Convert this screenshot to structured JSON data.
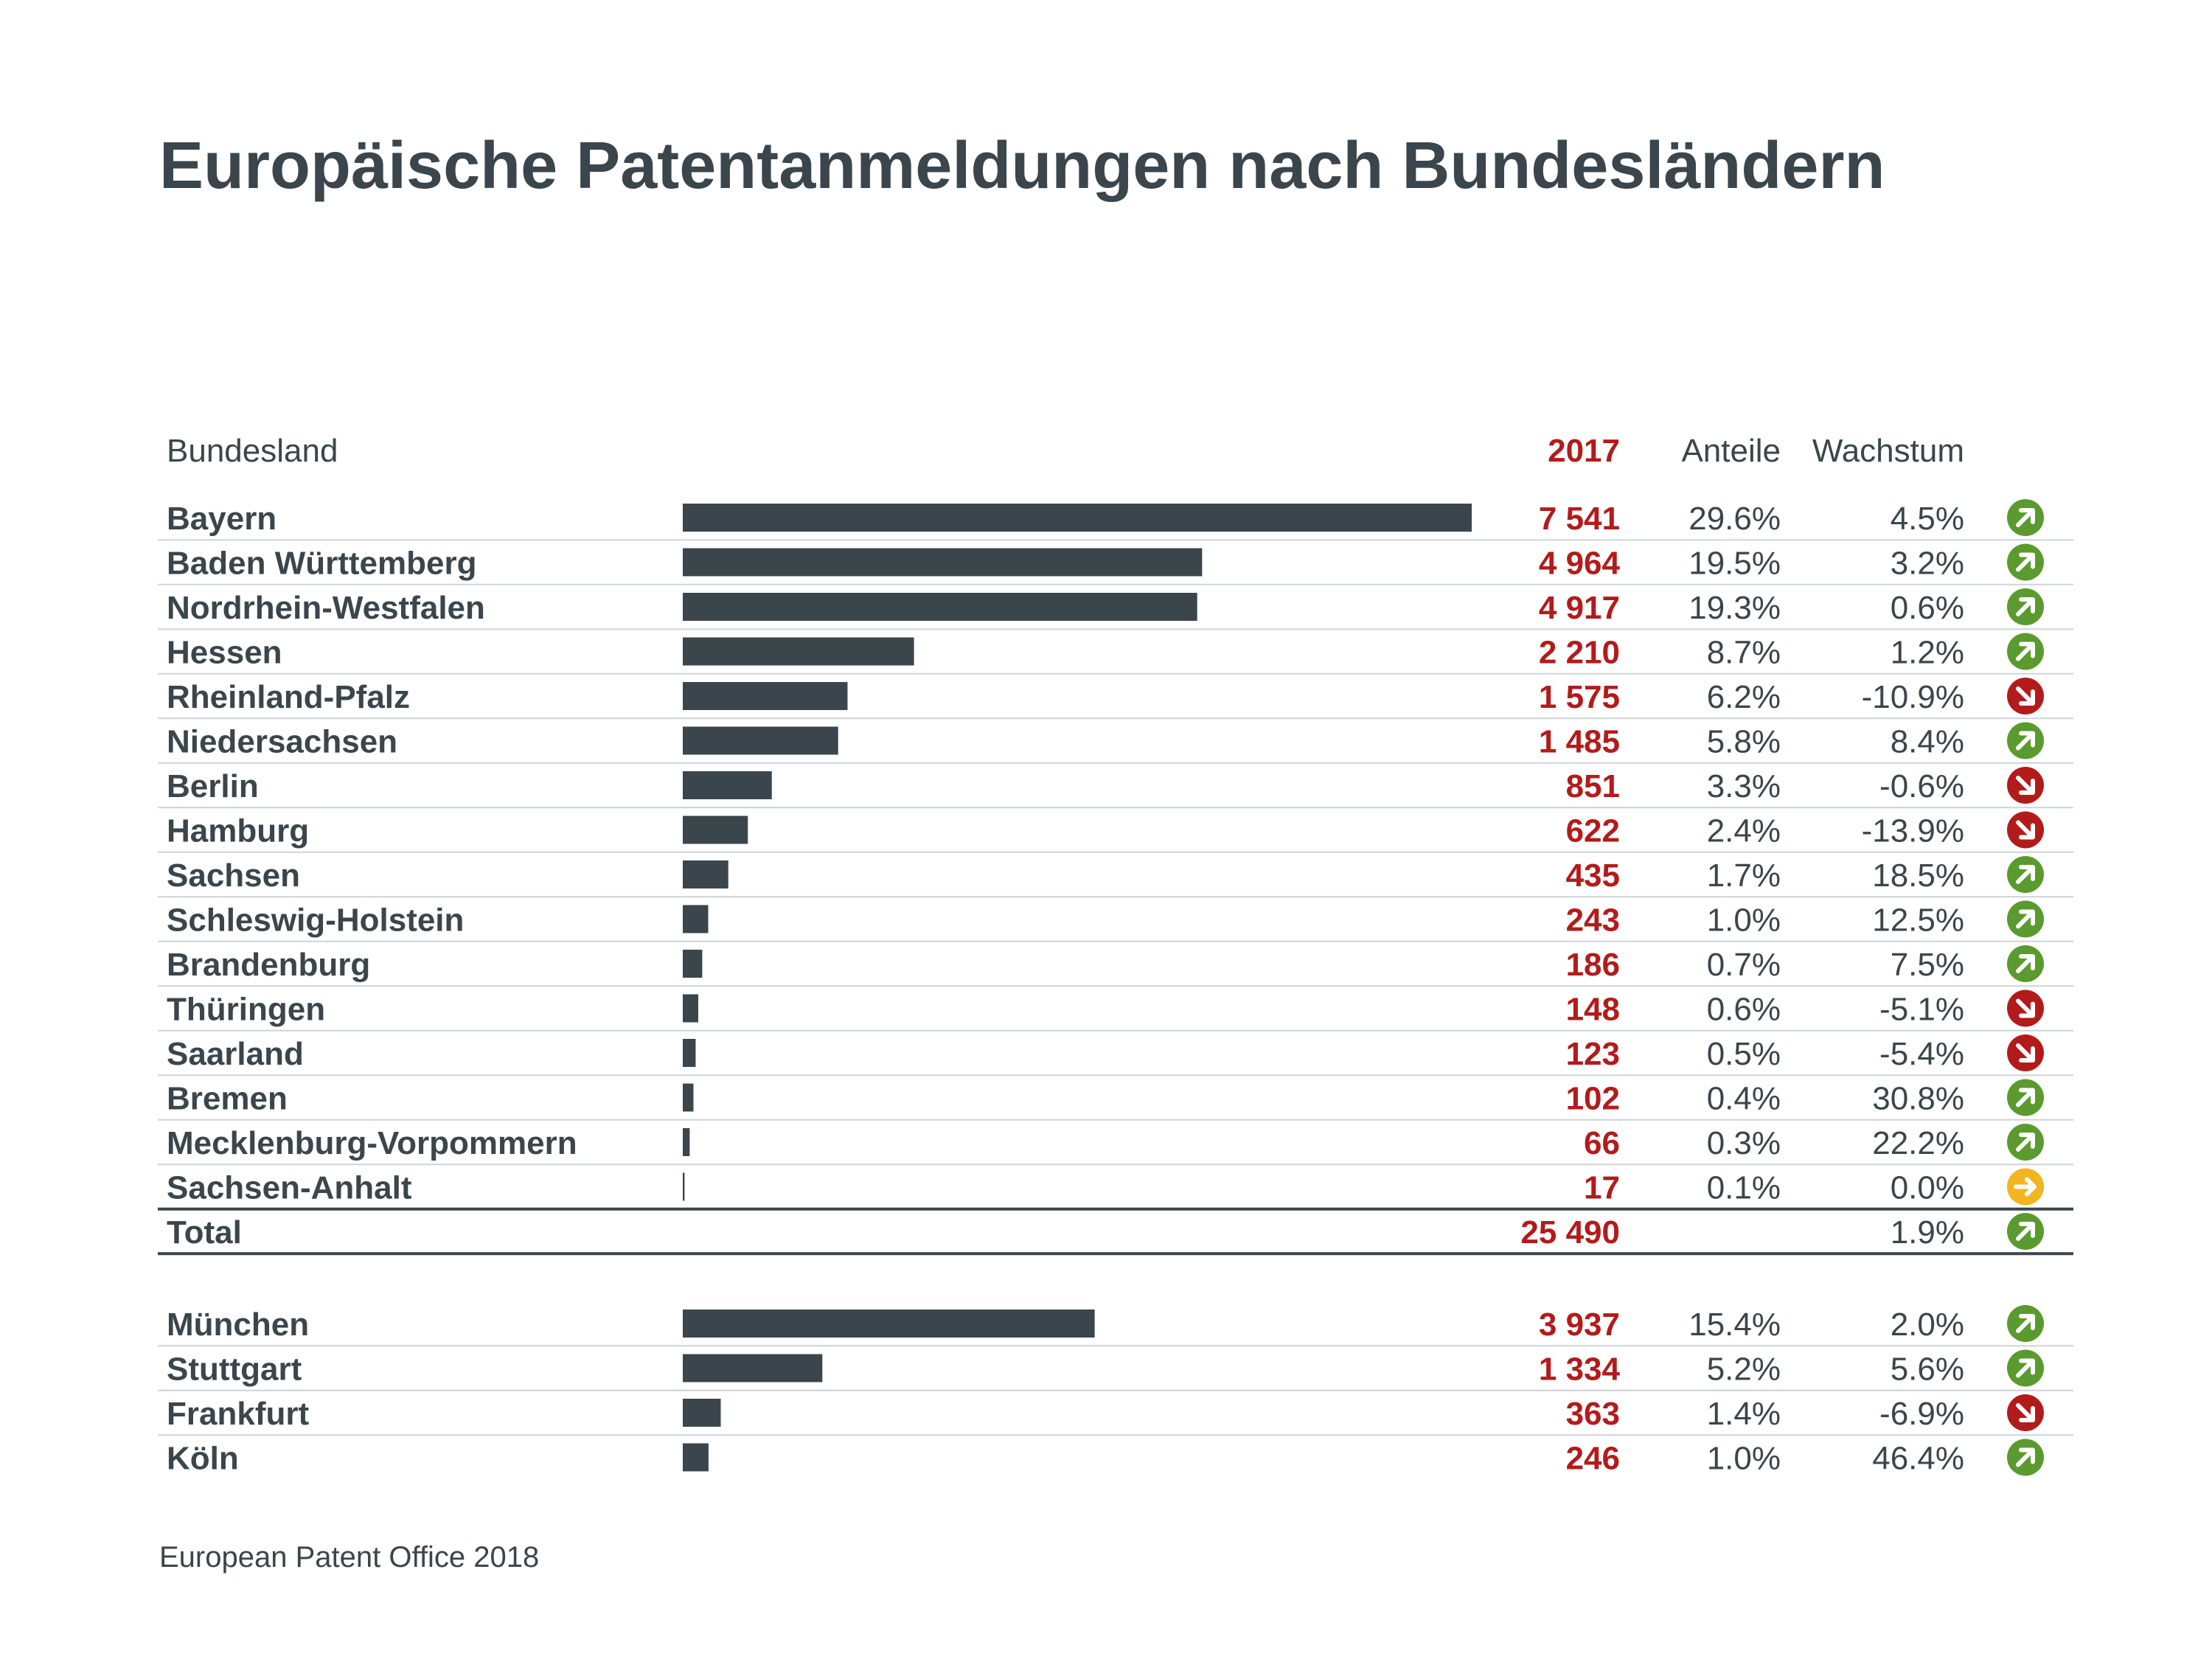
{
  "title": "Europäische Patentanmeldungen nach Bundesländern",
  "source": "European Patent Office 2018",
  "colors": {
    "text": "#3b454c",
    "bar": "#3b454c",
    "value": "#b31b1b",
    "up": "#5a9a2e",
    "down": "#b31b1b",
    "flat": "#f2b520",
    "rule": "#cfd3d6"
  },
  "chart_data": {
    "type": "bar",
    "orientation": "horizontal",
    "headers": {
      "category": "Bundesland",
      "value": "2017",
      "share": "Anteile",
      "growth": "Wachstum"
    },
    "xlim": [
      0,
      7541
    ],
    "states": [
      {
        "name": "Bayern",
        "value": 7541,
        "label": "7 541",
        "share": "29.6%",
        "growth": "4.5%",
        "trend": "up"
      },
      {
        "name": "Baden Württemberg",
        "value": 4964,
        "label": "4 964",
        "share": "19.5%",
        "growth": "3.2%",
        "trend": "up"
      },
      {
        "name": "Nordrhein-Westfalen",
        "value": 4917,
        "label": "4 917",
        "share": "19.3%",
        "growth": "0.6%",
        "trend": "up"
      },
      {
        "name": "Hessen",
        "value": 2210,
        "label": "2 210",
        "share": "8.7%",
        "growth": "1.2%",
        "trend": "up"
      },
      {
        "name": "Rheinland-Pfalz",
        "value": 1575,
        "label": "1 575",
        "share": "6.2%",
        "growth": "-10.9%",
        "trend": "down"
      },
      {
        "name": "Niedersachsen",
        "value": 1485,
        "label": "1 485",
        "share": "5.8%",
        "growth": "8.4%",
        "trend": "up"
      },
      {
        "name": "Berlin",
        "value": 851,
        "label": "851",
        "share": "3.3%",
        "growth": "-0.6%",
        "trend": "down"
      },
      {
        "name": "Hamburg",
        "value": 622,
        "label": "622",
        "share": "2.4%",
        "growth": "-13.9%",
        "trend": "down"
      },
      {
        "name": "Sachsen",
        "value": 435,
        "label": "435",
        "share": "1.7%",
        "growth": "18.5%",
        "trend": "up"
      },
      {
        "name": "Schleswig-Holstein",
        "value": 243,
        "label": "243",
        "share": "1.0%",
        "growth": "12.5%",
        "trend": "up"
      },
      {
        "name": "Brandenburg",
        "value": 186,
        "label": "186",
        "share": "0.7%",
        "growth": "7.5%",
        "trend": "up"
      },
      {
        "name": "Thüringen",
        "value": 148,
        "label": "148",
        "share": "0.6%",
        "growth": "-5.1%",
        "trend": "down"
      },
      {
        "name": "Saarland",
        "value": 123,
        "label": "123",
        "share": "0.5%",
        "growth": "-5.4%",
        "trend": "down"
      },
      {
        "name": "Bremen",
        "value": 102,
        "label": "102",
        "share": "0.4%",
        "growth": "30.8%",
        "trend": "up"
      },
      {
        "name": "Mecklenburg-Vorpommern",
        "value": 66,
        "label": "66",
        "share": "0.3%",
        "growth": "22.2%",
        "trend": "up"
      },
      {
        "name": "Sachsen-Anhalt",
        "value": 17,
        "label": "17",
        "share": "0.1%",
        "growth": "0.0%",
        "trend": "flat"
      }
    ],
    "total": {
      "name": "Total",
      "value": 25490,
      "label": "25 490",
      "growth": "1.9%",
      "trend": "up"
    },
    "cities": [
      {
        "name": "München",
        "value": 3937,
        "label": "3 937",
        "share": "15.4%",
        "growth": "2.0%",
        "trend": "up"
      },
      {
        "name": "Stuttgart",
        "value": 1334,
        "label": "1 334",
        "share": "5.2%",
        "growth": "5.6%",
        "trend": "up"
      },
      {
        "name": "Frankfurt",
        "value": 363,
        "label": "363",
        "share": "1.4%",
        "growth": "-6.9%",
        "trend": "down"
      },
      {
        "name": "Köln",
        "value": 246,
        "label": "246",
        "share": "1.0%",
        "growth": "46.4%",
        "trend": "up"
      }
    ]
  }
}
